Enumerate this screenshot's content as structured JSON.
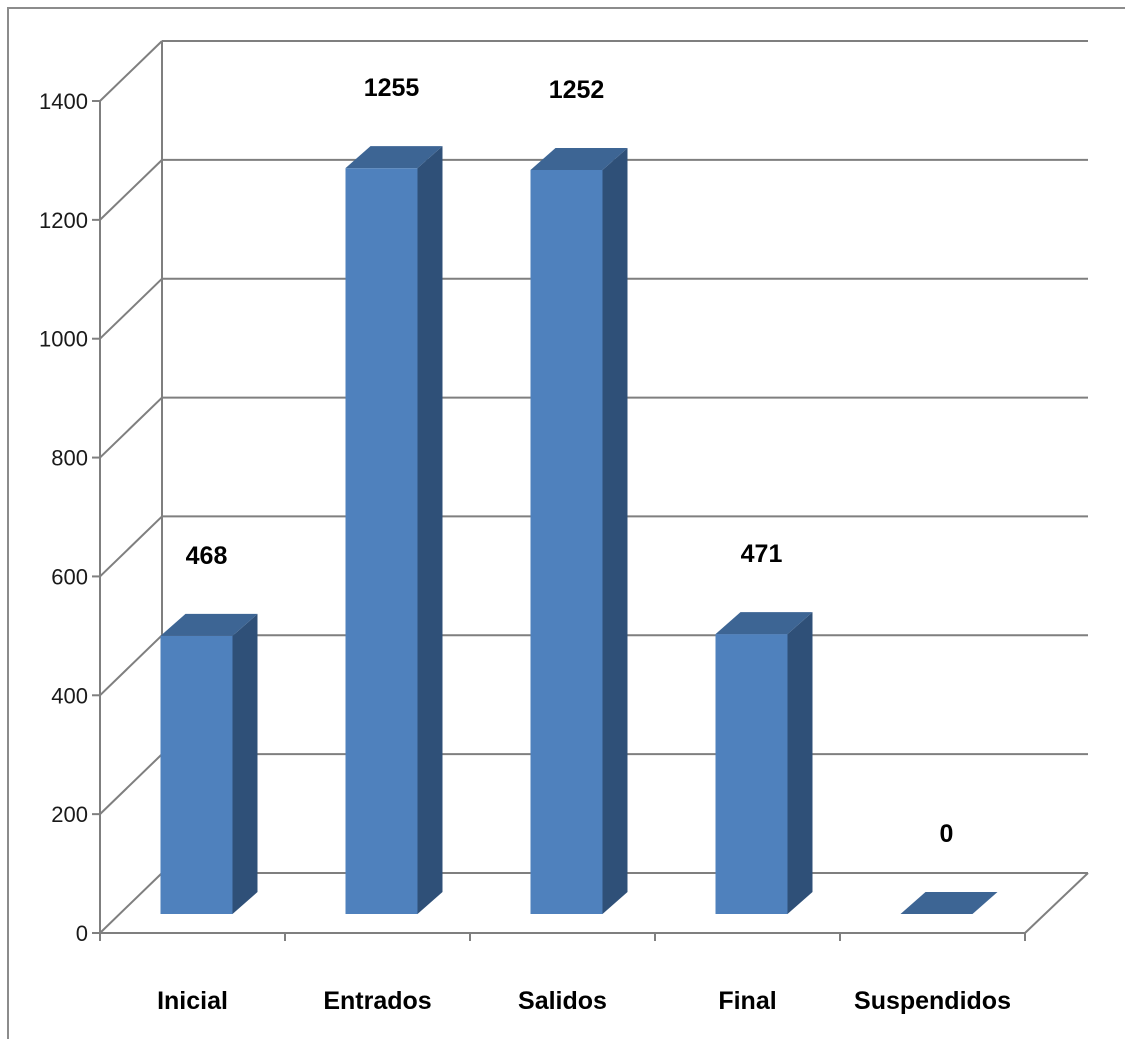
{
  "chart_data": {
    "type": "bar",
    "style": "3d-column",
    "categories": [
      "Inicial",
      "Entrados",
      "Salidos",
      "Final",
      "Suspendidos"
    ],
    "values": [
      468,
      1255,
      1252,
      471,
      0
    ],
    "data_labels": [
      "468",
      "1255",
      "1252",
      "471",
      "0"
    ],
    "title": "",
    "xlabel": "",
    "ylabel": "",
    "ylim": [
      0,
      1400
    ],
    "yticks": [
      "0",
      "200",
      "400",
      "600",
      "800",
      "1000",
      "1200",
      "1400"
    ],
    "grid": true,
    "legend": "none",
    "colors": {
      "bar_front": "#4f81bd",
      "bar_side": "#2f5078",
      "bar_top": "#3d6594",
      "grid": "#7f7f7f",
      "axis": "#7f7f7f"
    }
  }
}
